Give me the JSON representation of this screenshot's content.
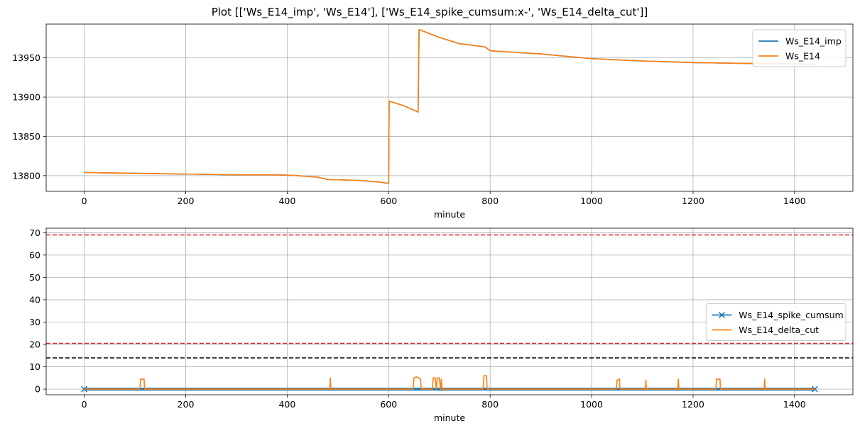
{
  "figure": {
    "title": "Plot [['Ws_E14_imp', 'Ws_E14'], ['Ws_E14_spike_cumsum:x-', 'Ws_E14_delta_cut']]"
  },
  "chart_data": [
    {
      "type": "line",
      "xlabel": "minute",
      "ylabel": "",
      "xlim": [
        -75,
        1515
      ],
      "ylim": [
        13780,
        13993
      ],
      "xticks": [
        0,
        200,
        400,
        600,
        800,
        1000,
        1200,
        1400
      ],
      "yticks": [
        13800,
        13850,
        13900,
        13950
      ],
      "grid": true,
      "legend": "top-right",
      "series": [
        {
          "name": "Ws_E14_imp",
          "color": "#1f77b4",
          "points": [
            [
              0,
              13804
            ],
            [
              100,
              13803
            ],
            [
              200,
              13802
            ],
            [
              300,
              13801
            ],
            [
              380,
              13801
            ],
            [
              420,
              13800
            ],
            [
              460,
              13798
            ],
            [
              480,
              13795
            ],
            [
              540,
              13794
            ],
            [
              580,
              13792
            ],
            [
              600,
              13790
            ],
            [
              601,
              13895
            ],
            [
              630,
              13889
            ],
            [
              658,
              13881
            ],
            [
              660,
              13986
            ],
            [
              700,
              13976
            ],
            [
              740,
              13968
            ],
            [
              790,
              13964
            ],
            [
              800,
              13959
            ],
            [
              900,
              13955
            ],
            [
              1000,
              13949
            ],
            [
              1100,
              13946
            ],
            [
              1200,
              13944
            ],
            [
              1300,
              13943
            ],
            [
              1440,
              13942
            ]
          ]
        },
        {
          "name": "Ws_E14",
          "color": "#ff7f0e",
          "points": [
            [
              0,
              13804
            ],
            [
              100,
              13803
            ],
            [
              200,
              13802
            ],
            [
              300,
              13801
            ],
            [
              380,
              13801
            ],
            [
              420,
              13800
            ],
            [
              460,
              13798
            ],
            [
              480,
              13795
            ],
            [
              540,
              13794
            ],
            [
              580,
              13792
            ],
            [
              600,
              13790
            ],
            [
              601,
              13895
            ],
            [
              630,
              13889
            ],
            [
              658,
              13881
            ],
            [
              660,
              13986
            ],
            [
              700,
              13976
            ],
            [
              740,
              13968
            ],
            [
              790,
              13964
            ],
            [
              800,
              13959
            ],
            [
              900,
              13955
            ],
            [
              1000,
              13949
            ],
            [
              1100,
              13946
            ],
            [
              1200,
              13944
            ],
            [
              1300,
              13943
            ],
            [
              1440,
              13942
            ]
          ]
        }
      ]
    },
    {
      "type": "line",
      "xlabel": "minute",
      "ylabel": "",
      "xlim": [
        -75,
        1515
      ],
      "ylim": [
        -2.5,
        72
      ],
      "xticks": [
        0,
        200,
        400,
        600,
        800,
        1000,
        1200,
        1400
      ],
      "yticks": [
        0,
        10,
        20,
        30,
        40,
        50,
        60,
        70
      ],
      "grid": true,
      "legend": "center-right",
      "hlines": [
        {
          "y": 69,
          "color": "#d62728",
          "style": "dashed"
        },
        {
          "y": 20.5,
          "color": "#d62728",
          "style": "dashed"
        },
        {
          "y": 14,
          "color": "#000000",
          "style": "dashed"
        }
      ],
      "series": [
        {
          "name": "Ws_E14_spike_cumsum",
          "color": "#1f77b4",
          "marker": "x",
          "points": [
            [
              0,
              0
            ],
            [
              1440,
              0
            ]
          ]
        },
        {
          "name": "Ws_E14_delta_cut",
          "color": "#ff7f0e",
          "points": [
            [
              0,
              0
            ],
            [
              110,
              0
            ],
            [
              111,
              4.5
            ],
            [
              118,
              4.5
            ],
            [
              119,
              0
            ],
            [
              484,
              0
            ],
            [
              485,
              5
            ],
            [
              486,
              0
            ],
            [
              648,
              0
            ],
            [
              650,
              5
            ],
            [
              655,
              5.5
            ],
            [
              663,
              4.5
            ],
            [
              664,
              0
            ],
            [
              686,
              0
            ],
            [
              688,
              5
            ],
            [
              692,
              5
            ],
            [
              694,
              0
            ],
            [
              696,
              5
            ],
            [
              700,
              5
            ],
            [
              702,
              0
            ],
            [
              704,
              4.5
            ],
            [
              705,
              0
            ],
            [
              786,
              0
            ],
            [
              788,
              6
            ],
            [
              793,
              6
            ],
            [
              794,
              0
            ],
            [
              1049,
              0
            ],
            [
              1050,
              4
            ],
            [
              1055,
              4.5
            ],
            [
              1056,
              0
            ],
            [
              1106,
              0
            ],
            [
              1107,
              4
            ],
            [
              1108,
              0
            ],
            [
              1170,
              0
            ],
            [
              1171,
              4.5
            ],
            [
              1172,
              0
            ],
            [
              1245,
              0
            ],
            [
              1246,
              4.5
            ],
            [
              1253,
              4.5
            ],
            [
              1254,
              0
            ],
            [
              1340,
              0
            ],
            [
              1341,
              4.5
            ],
            [
              1342,
              0
            ],
            [
              1440,
              0
            ]
          ]
        }
      ]
    }
  ]
}
